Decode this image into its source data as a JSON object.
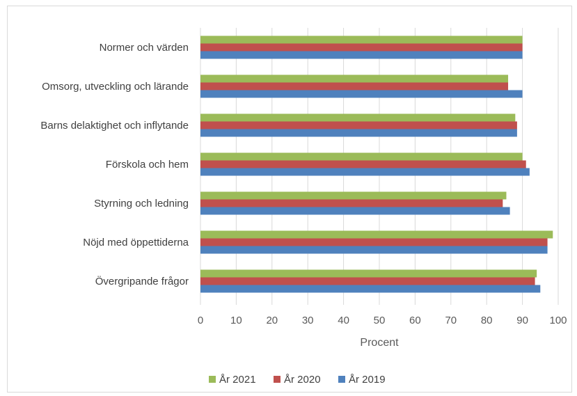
{
  "chart_data": {
    "type": "bar",
    "orientation": "horizontal",
    "categories": [
      "Normer och värden",
      "Omsorg, utveckling och lärande",
      "Barns delaktighet och inflytande",
      "Förskola och hem",
      "Styrning och ledning",
      "Nöjd med öppettiderna",
      "Övergripande frågor"
    ],
    "series": [
      {
        "name": "År 2021",
        "color": "#9bbb59",
        "values": [
          90,
          86,
          88,
          90,
          85.5,
          98.5,
          94
        ]
      },
      {
        "name": "År 2020",
        "color": "#c0504d",
        "values": [
          90,
          86,
          88.5,
          91,
          84.5,
          97,
          93.5
        ]
      },
      {
        "name": "År 2019",
        "color": "#4f81bd",
        "values": [
          90,
          90,
          88.5,
          92,
          86.5,
          97,
          95
        ]
      }
    ],
    "xlim": [
      0,
      100
    ],
    "xticks": [
      "0",
      "10",
      "20",
      "30",
      "40",
      "50",
      "60",
      "70",
      "80",
      "90",
      "100"
    ],
    "xlabel": "Procent",
    "ylabel": "",
    "title": "",
    "grid": true,
    "legend_position": "bottom"
  }
}
